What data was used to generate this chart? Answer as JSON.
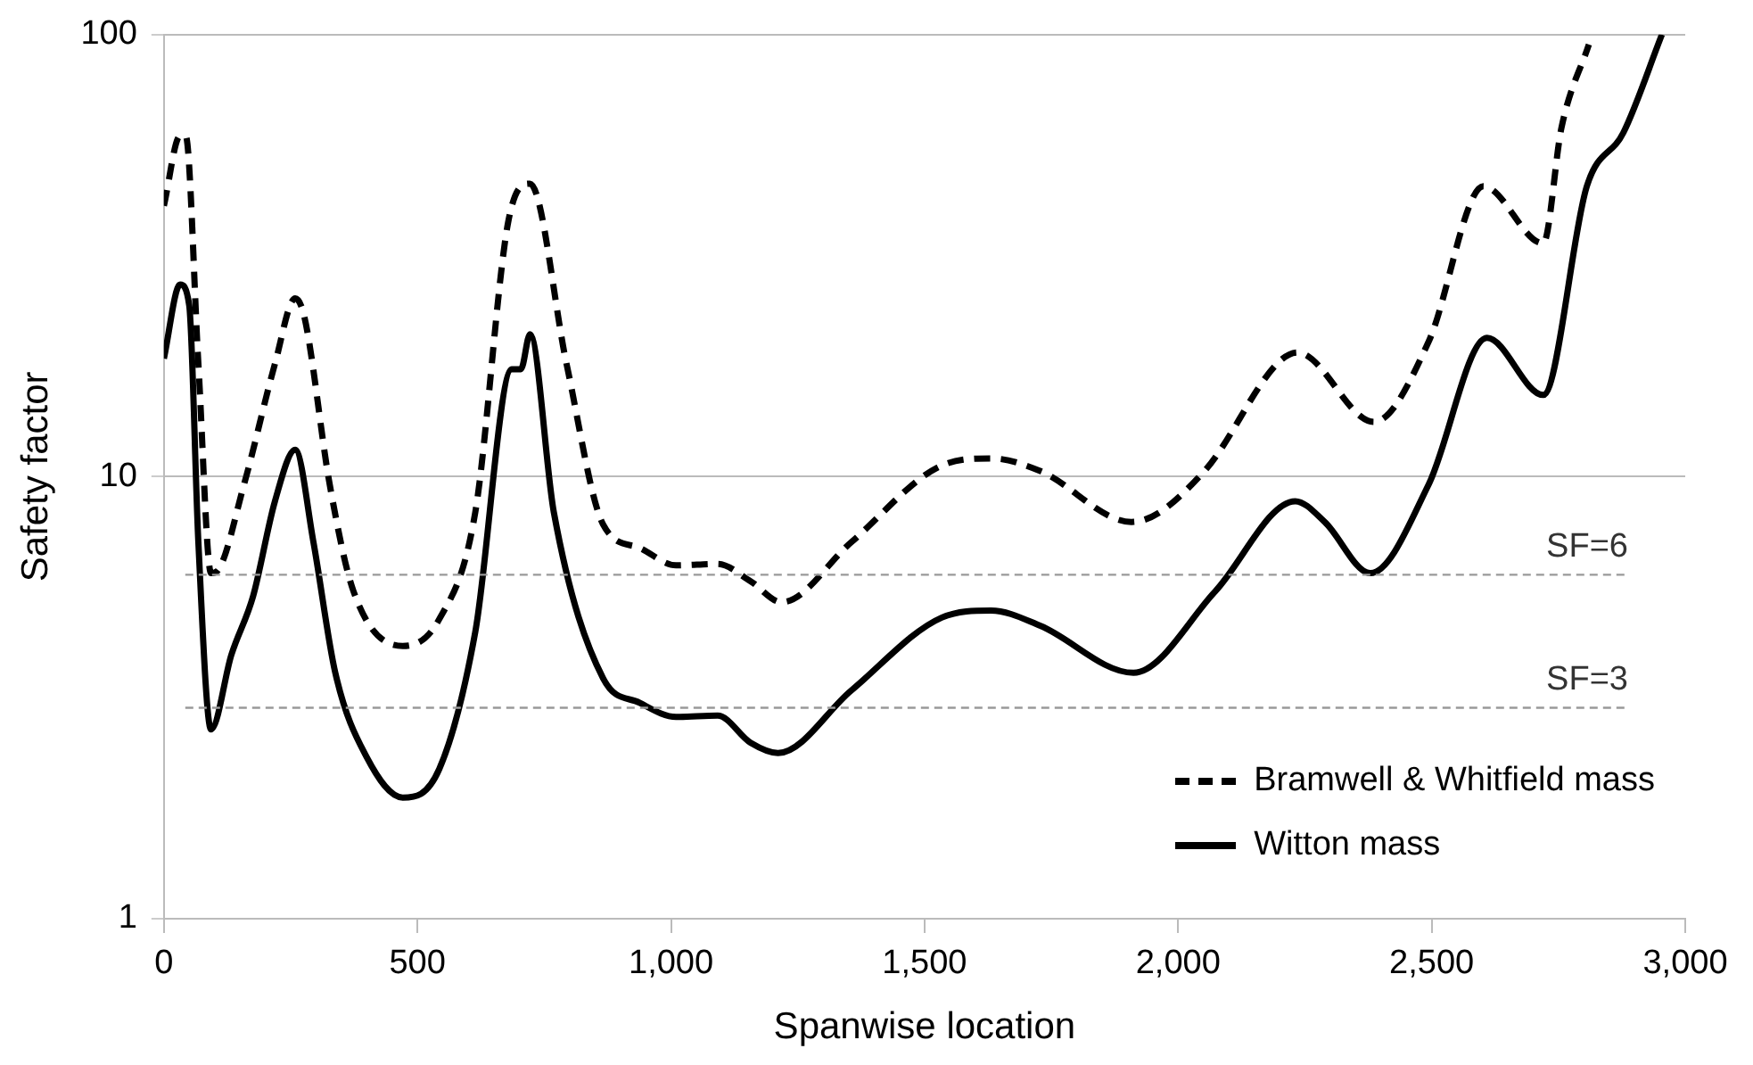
{
  "chart_data": {
    "type": "line",
    "xlabel": "Spanwise location",
    "ylabel": "Safety factor",
    "log": "y",
    "grid": "y",
    "legend": "bottom right",
    "marker": "none",
    "xlim": [
      0,
      3000
    ],
    "xticks": [
      {
        "value": 0,
        "label": "0"
      },
      {
        "value": 500,
        "label": "500"
      },
      {
        "value": 1000,
        "label": "1,000"
      },
      {
        "value": 1500,
        "label": "1,500"
      },
      {
        "value": 2000,
        "label": "2,000"
      },
      {
        "value": 2500,
        "label": "2,500"
      },
      {
        "value": 3000,
        "label": "3,000"
      }
    ],
    "ylim": [
      1,
      100
    ],
    "yticks": [
      1,
      10,
      100
    ],
    "ref_lines": [
      {
        "axis": "y",
        "value": 6,
        "label": "SF=6",
        "color": "#999999",
        "line_style": "dashed"
      },
      {
        "axis": "y",
        "value": 3,
        "label": "SF=3",
        "color": "#999999",
        "line_style": "dashed"
      }
    ],
    "series": [
      {
        "name": "Bramwell & Whitfield mass",
        "color": "#000000",
        "line_style": "dashed",
        "x": [
          0,
          32,
          43,
          68,
          93,
          104,
          158,
          219,
          259,
          277,
          327,
          374,
          471,
          543,
          614,
          679,
          722,
          794,
          866,
          938,
          1010,
          1092,
          1157,
          1218,
          1355,
          1534,
          1631,
          1728,
          1908,
          2052,
          2195,
          2235,
          2386,
          2494,
          2602,
          2720,
          2756,
          2810
        ],
        "values": [
          41,
          59,
          59,
          18,
          6.05,
          6.1,
          9.6,
          18,
          25.3,
          23,
          9.6,
          5.5,
          4.14,
          4.76,
          8.3,
          37.7,
          46,
          18,
          7.8,
          6.9,
          6.3,
          6.35,
          5.8,
          5.2,
          7.1,
          10.6,
          11,
          10.3,
          7.9,
          10.3,
          18,
          19.1,
          13.3,
          20.2,
          45.4,
          33.7,
          61.6,
          95
        ]
      },
      {
        "name": "Witton mass",
        "color": "#000000",
        "line_style": "solid",
        "x": [
          0,
          32,
          50,
          68,
          93,
          133,
          176,
          219,
          259,
          295,
          338,
          399,
          471,
          543,
          614,
          686,
          704,
          722,
          769,
          866,
          938,
          1010,
          1092,
          1157,
          1211,
          1355,
          1534,
          1631,
          1728,
          1912,
          2073,
          2231,
          2289,
          2379,
          2494,
          2609,
          2720,
          2806,
          2878,
          2954
        ],
        "values": [
          18.5,
          27.2,
          24.4,
          7.1,
          2.68,
          3.95,
          5.37,
          8.8,
          11.5,
          7.1,
          3.6,
          2.33,
          1.88,
          2.18,
          4.45,
          17.5,
          17.5,
          21,
          8.3,
          3.5,
          3.08,
          2.86,
          2.88,
          2.5,
          2.37,
          3.28,
          4.8,
          4.98,
          4.6,
          3.6,
          5.5,
          8.8,
          7.9,
          6.05,
          9.6,
          20.6,
          15.3,
          45.4,
          60,
          100
        ]
      }
    ]
  }
}
